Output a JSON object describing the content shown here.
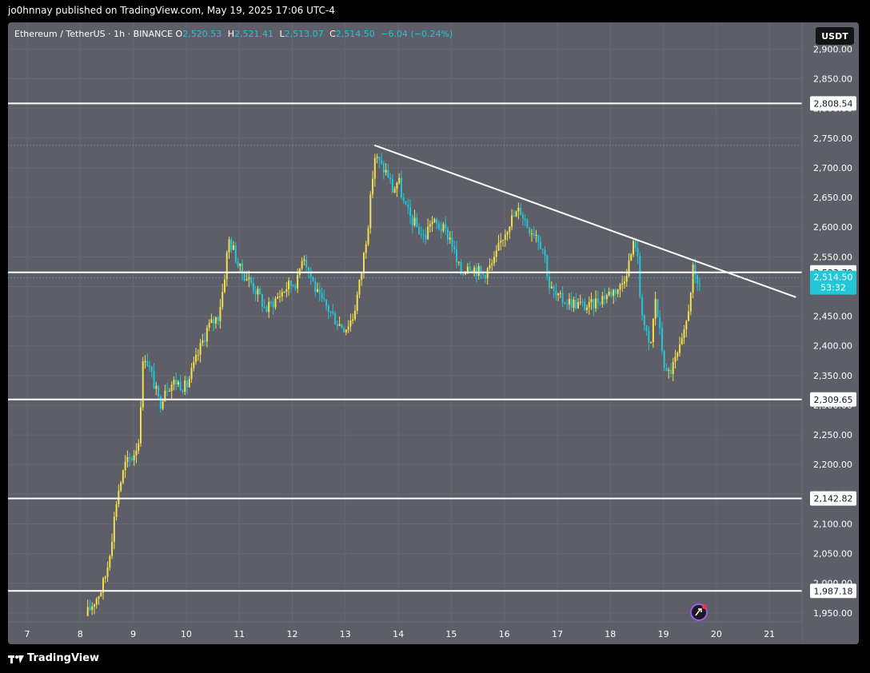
{
  "publish_line": "jo0hnnay published on TradingView.com, May 19, 2025 17:06 UTC-4",
  "legend": {
    "symbol": "Ethereum / TetherUS · 1h · BINANCE",
    "o_label": "O",
    "o": "2,520.53",
    "h_label": "H",
    "h": "2,521.41",
    "l_label": "L",
    "l": "2,513.07",
    "c_label": "C",
    "c": "2,514.50",
    "change": "−6.04 (−0.24%)"
  },
  "currency": "USDT",
  "footer_brand": "TradingView",
  "colors": {
    "background": "#5d5e67",
    "up": "#f4e04d",
    "down": "#22c6d6",
    "line": "#ffffff"
  },
  "chart_data": {
    "type": "candlestick",
    "x_ticks": [
      "7",
      "8",
      "9",
      "10",
      "11",
      "12",
      "13",
      "14",
      "15",
      "16",
      "17",
      "18",
      "19",
      "20",
      "21"
    ],
    "y_ticks": [
      "1,950.00",
      "2,000.00",
      "2,050.00",
      "2,100.00",
      "2,150.00",
      "2,200.00",
      "2,250.00",
      "2,300.00",
      "2,350.00",
      "2,400.00",
      "2,450.00",
      "2,500.00",
      "2,550.00",
      "2,600.00",
      "2,650.00",
      "2,700.00",
      "2,750.00",
      "2,800.00",
      "2,850.00",
      "2,900.00"
    ],
    "ylim": [
      1935,
      2945
    ],
    "horizontal_levels": [
      {
        "value": 2808.54,
        "label": "2,808.54"
      },
      {
        "value": 2523.79,
        "label": "2,523.79"
      },
      {
        "value": 2309.65,
        "label": "2,309.65"
      },
      {
        "value": 2142.82,
        "label": "2,142.82"
      },
      {
        "value": 1987.18,
        "label": "1,987.18"
      }
    ],
    "trendline": {
      "from": {
        "day": 13.55,
        "price": 2738
      },
      "to": {
        "day": 21.5,
        "price": 2482
      }
    },
    "last_price": {
      "value": 2514.5,
      "label": "2,514.50",
      "countdown": "53:32"
    },
    "high_marker": 2738,
    "price_path": [
      [
        8.1,
        1945
      ],
      [
        8.4,
        1990
      ],
      [
        8.5,
        2020
      ],
      [
        8.6,
        2080
      ],
      [
        8.7,
        2150
      ],
      [
        8.85,
        2200
      ],
      [
        9.0,
        2215
      ],
      [
        9.1,
        2240
      ],
      [
        9.15,
        2320
      ],
      [
        9.2,
        2390
      ],
      [
        9.35,
        2350
      ],
      [
        9.5,
        2300
      ],
      [
        9.6,
        2330
      ],
      [
        9.8,
        2340
      ],
      [
        10.0,
        2330
      ],
      [
        10.2,
        2380
      ],
      [
        10.4,
        2430
      ],
      [
        10.6,
        2450
      ],
      [
        10.7,
        2500
      ],
      [
        10.8,
        2580
      ],
      [
        10.9,
        2560
      ],
      [
        11.0,
        2530
      ],
      [
        11.2,
        2510
      ],
      [
        11.4,
        2480
      ],
      [
        11.5,
        2460
      ],
      [
        11.7,
        2480
      ],
      [
        11.9,
        2500
      ],
      [
        12.1,
        2510
      ],
      [
        12.2,
        2560
      ],
      [
        12.3,
        2530
      ],
      [
        12.5,
        2480
      ],
      [
        12.7,
        2460
      ],
      [
        12.85,
        2440
      ],
      [
        13.0,
        2430
      ],
      [
        13.15,
        2450
      ],
      [
        13.3,
        2520
      ],
      [
        13.45,
        2620
      ],
      [
        13.55,
        2720
      ],
      [
        13.7,
        2700
      ],
      [
        13.8,
        2690
      ],
      [
        13.9,
        2660
      ],
      [
        14.0,
        2680
      ],
      [
        14.1,
        2640
      ],
      [
        14.2,
        2620
      ],
      [
        14.35,
        2600
      ],
      [
        14.5,
        2580
      ],
      [
        14.6,
        2610
      ],
      [
        14.8,
        2600
      ],
      [
        15.0,
        2580
      ],
      [
        15.1,
        2540
      ],
      [
        15.2,
        2520
      ],
      [
        15.3,
        2540
      ],
      [
        15.45,
        2530
      ],
      [
        15.6,
        2520
      ],
      [
        15.8,
        2540
      ],
      [
        15.95,
        2580
      ],
      [
        16.1,
        2610
      ],
      [
        16.3,
        2630
      ],
      [
        16.45,
        2600
      ],
      [
        16.6,
        2590
      ],
      [
        16.75,
        2560
      ],
      [
        16.85,
        2500
      ],
      [
        17.0,
        2480
      ],
      [
        17.2,
        2475
      ],
      [
        17.4,
        2470
      ],
      [
        17.6,
        2465
      ],
      [
        17.8,
        2480
      ],
      [
        18.0,
        2490
      ],
      [
        18.2,
        2500
      ],
      [
        18.35,
        2540
      ],
      [
        18.45,
        2575
      ],
      [
        18.5,
        2570
      ],
      [
        18.55,
        2490
      ],
      [
        18.65,
        2430
      ],
      [
        18.75,
        2390
      ],
      [
        18.85,
        2480
      ],
      [
        18.95,
        2410
      ],
      [
        19.05,
        2350
      ],
      [
        19.15,
        2360
      ],
      [
        19.3,
        2390
      ],
      [
        19.4,
        2420
      ],
      [
        19.5,
        2480
      ],
      [
        19.55,
        2530
      ],
      [
        19.62,
        2500
      ],
      [
        19.72,
        2514
      ]
    ]
  }
}
